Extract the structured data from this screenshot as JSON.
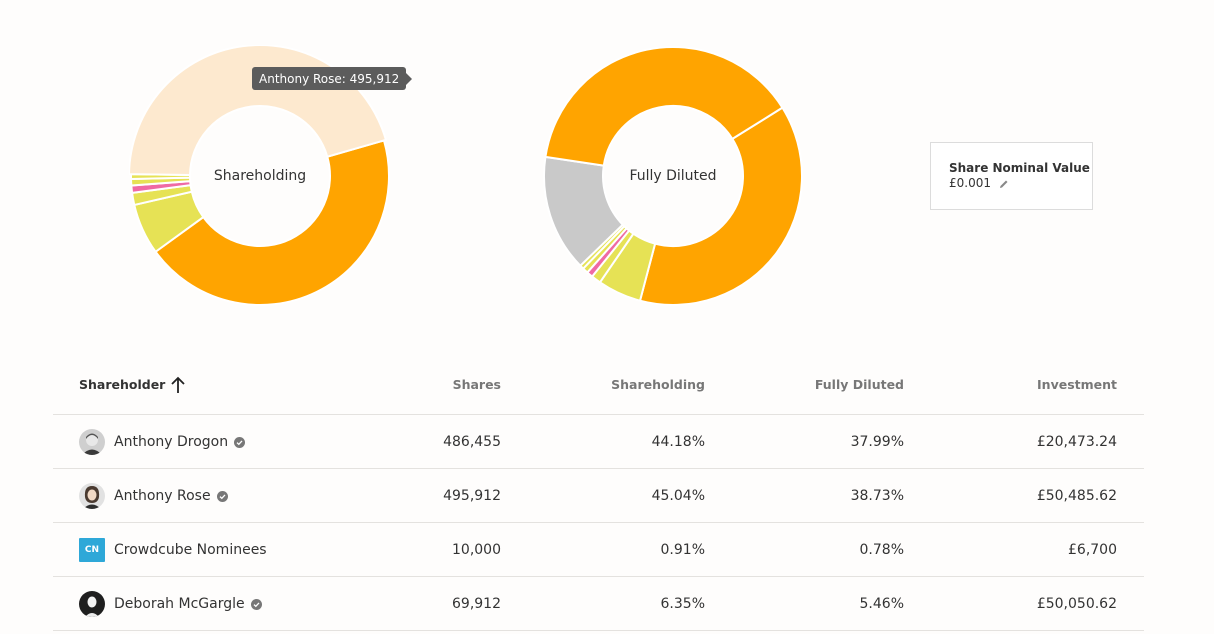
{
  "charts": {
    "shareholding": {
      "center_label": "Shareholding",
      "tooltip": "Anthony Rose: 495,912"
    },
    "fully_diluted": {
      "center_label": "Fully Diluted"
    }
  },
  "chart_data": [
    {
      "type": "pie",
      "title": "Shareholding",
      "categories": [
        "Anthony Drogon",
        "Deborah McGargle",
        "Other 1",
        "Crowdcube Nominees",
        "Other 2",
        "Other 3",
        "Anthony Rose"
      ],
      "values": [
        44.18,
        6.35,
        1.5,
        0.91,
        0.8,
        0.6,
        45.04
      ],
      "colors": [
        "#ffa400",
        "#e6e255",
        "#e6e255",
        "#ef6aa4",
        "#e6e255",
        "#e6e255",
        "#fde9cf"
      ],
      "highlighted": "Anthony Rose"
    },
    {
      "type": "pie",
      "title": "Fully Diluted",
      "categories": [
        "Anthony Drogon",
        "Deborah McGargle",
        "Other 1",
        "Crowdcube Nominees",
        "Other 2",
        "Other 3",
        "Unallocated",
        "Anthony Rose"
      ],
      "values": [
        37.99,
        5.46,
        1.2,
        0.78,
        0.7,
        0.5,
        14.6,
        38.73
      ],
      "colors": [
        "#ffa400",
        "#e6e255",
        "#e6e255",
        "#ef6aa4",
        "#e6e255",
        "#e6e255",
        "#c9c9c9",
        "#ffa400"
      ]
    }
  ],
  "nominal": {
    "title": "Share Nominal Value",
    "value": "£0.001",
    "icon": "pencil-icon"
  },
  "table": {
    "headers": {
      "shareholder": "Shareholder",
      "shares": "Shares",
      "shareholding": "Shareholding",
      "fully_diluted": "Fully Diluted",
      "investment": "Investment"
    },
    "rows": [
      {
        "name": "Anthony Drogon",
        "avatar": "photo",
        "verified": true,
        "shares": "486,455",
        "shareholding": "44.18%",
        "fully_diluted": "37.99%",
        "investment": "£20,473.24"
      },
      {
        "name": "Anthony Rose",
        "avatar": "photo",
        "verified": true,
        "shares": "495,912",
        "shareholding": "45.04%",
        "fully_diluted": "38.73%",
        "investment": "£50,485.62"
      },
      {
        "name": "Crowdcube Nominees",
        "avatar": "CN",
        "verified": false,
        "shares": "10,000",
        "shareholding": "0.91%",
        "fully_diluted": "0.78%",
        "investment": "£6,700"
      },
      {
        "name": "Deborah McGargle",
        "avatar": "photo",
        "verified": true,
        "shares": "69,912",
        "shareholding": "6.35%",
        "fully_diluted": "5.46%",
        "investment": "£50,050.62"
      }
    ]
  }
}
